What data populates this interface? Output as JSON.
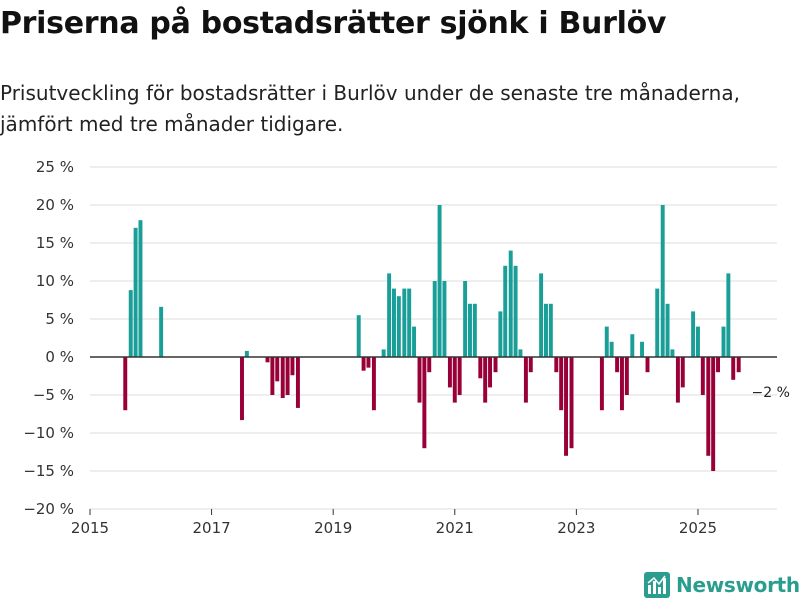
{
  "title": "Priserna på bostadsrätter sjönk i Burlöv",
  "subtitle": "Prisutveckling för bostadsrätter i Burlöv under de senaste tre månaderna, jämfört med tre månader tidigare.",
  "logo": {
    "text": "Newsworthy",
    "icon": "newsworthy-logo-icon"
  },
  "colors": {
    "positive": "#1a9e98",
    "negative": "#990038",
    "grid": "#dddddd",
    "axis": "#333333",
    "text": "#333333"
  },
  "chart_data": {
    "type": "bar",
    "title": "Priserna på bostadsrätter sjönk i Burlöv",
    "xlabel": "",
    "ylabel": "",
    "ylim": [
      -20,
      25
    ],
    "xlim": [
      2015.0,
      2026.3
    ],
    "yticks": [
      25,
      20,
      15,
      10,
      5,
      0,
      -5,
      -10,
      -15,
      -20
    ],
    "ytick_labels": [
      "25 %",
      "20 %",
      "15 %",
      "10 %",
      "5 %",
      "0 %",
      "−5 %",
      "−10 %",
      "−15 %",
      "−20 %"
    ],
    "xticks": [
      2015,
      2017,
      2019,
      2021,
      2023,
      2025
    ],
    "xtick_labels": [
      "2015",
      "2017",
      "2019",
      "2021",
      "2023",
      "2025"
    ],
    "bar_width_years": 0.065,
    "annotation": {
      "x": 2025.75,
      "y": -2,
      "text": "−2 %"
    },
    "series": [
      {
        "name": "Prisutveckling",
        "points": [
          {
            "x": 2015.58,
            "y": -7
          },
          {
            "x": 2015.67,
            "y": 8.8
          },
          {
            "x": 2015.75,
            "y": 17
          },
          {
            "x": 2015.83,
            "y": 18
          },
          {
            "x": 2016.17,
            "y": 6.6
          },
          {
            "x": 2017.5,
            "y": -8.3
          },
          {
            "x": 2017.58,
            "y": 0.8
          },
          {
            "x": 2017.92,
            "y": -0.7
          },
          {
            "x": 2018.0,
            "y": -5
          },
          {
            "x": 2018.08,
            "y": -3.2
          },
          {
            "x": 2018.17,
            "y": -5.4
          },
          {
            "x": 2018.25,
            "y": -5
          },
          {
            "x": 2018.33,
            "y": -2.4
          },
          {
            "x": 2018.42,
            "y": -6.7
          },
          {
            "x": 2019.42,
            "y": 5.5
          },
          {
            "x": 2019.5,
            "y": -1.8
          },
          {
            "x": 2019.58,
            "y": -1.4
          },
          {
            "x": 2019.67,
            "y": -7
          },
          {
            "x": 2019.83,
            "y": 1
          },
          {
            "x": 2019.92,
            "y": 11
          },
          {
            "x": 2020.0,
            "y": 9
          },
          {
            "x": 2020.08,
            "y": 8
          },
          {
            "x": 2020.17,
            "y": 9
          },
          {
            "x": 2020.25,
            "y": 9
          },
          {
            "x": 2020.33,
            "y": 4
          },
          {
            "x": 2020.42,
            "y": -6
          },
          {
            "x": 2020.5,
            "y": -12
          },
          {
            "x": 2020.58,
            "y": -2
          },
          {
            "x": 2020.67,
            "y": 10
          },
          {
            "x": 2020.75,
            "y": 20
          },
          {
            "x": 2020.83,
            "y": 10
          },
          {
            "x": 2020.92,
            "y": -4
          },
          {
            "x": 2021.0,
            "y": -6
          },
          {
            "x": 2021.08,
            "y": -5
          },
          {
            "x": 2021.17,
            "y": 10
          },
          {
            "x": 2021.25,
            "y": 7
          },
          {
            "x": 2021.33,
            "y": 7
          },
          {
            "x": 2021.42,
            "y": -2.8
          },
          {
            "x": 2021.5,
            "y": -6
          },
          {
            "x": 2021.58,
            "y": -4
          },
          {
            "x": 2021.67,
            "y": -2
          },
          {
            "x": 2021.75,
            "y": 6
          },
          {
            "x": 2021.83,
            "y": 12
          },
          {
            "x": 2021.92,
            "y": 14
          },
          {
            "x": 2022.0,
            "y": 12
          },
          {
            "x": 2022.08,
            "y": 1
          },
          {
            "x": 2022.17,
            "y": -6
          },
          {
            "x": 2022.25,
            "y": -2
          },
          {
            "x": 2022.42,
            "y": 11
          },
          {
            "x": 2022.5,
            "y": 7
          },
          {
            "x": 2022.58,
            "y": 7
          },
          {
            "x": 2022.67,
            "y": -2
          },
          {
            "x": 2022.75,
            "y": -7
          },
          {
            "x": 2022.83,
            "y": -13
          },
          {
            "x": 2022.92,
            "y": -12
          },
          {
            "x": 2023.42,
            "y": -7
          },
          {
            "x": 2023.5,
            "y": 4
          },
          {
            "x": 2023.58,
            "y": 2
          },
          {
            "x": 2023.67,
            "y": -2
          },
          {
            "x": 2023.75,
            "y": -7
          },
          {
            "x": 2023.83,
            "y": -5
          },
          {
            "x": 2023.92,
            "y": 3
          },
          {
            "x": 2024.08,
            "y": 2
          },
          {
            "x": 2024.17,
            "y": -2
          },
          {
            "x": 2024.33,
            "y": 9
          },
          {
            "x": 2024.42,
            "y": 20
          },
          {
            "x": 2024.5,
            "y": 7
          },
          {
            "x": 2024.58,
            "y": 1
          },
          {
            "x": 2024.67,
            "y": -6
          },
          {
            "x": 2024.75,
            "y": -4
          },
          {
            "x": 2024.92,
            "y": 6
          },
          {
            "x": 2025.0,
            "y": 4
          },
          {
            "x": 2025.08,
            "y": -5
          },
          {
            "x": 2025.17,
            "y": -13
          },
          {
            "x": 2025.25,
            "y": -15
          },
          {
            "x": 2025.33,
            "y": -2
          },
          {
            "x": 2025.42,
            "y": 4
          },
          {
            "x": 2025.5,
            "y": 11
          },
          {
            "x": 2025.58,
            "y": -3
          },
          {
            "x": 2025.67,
            "y": -2
          }
        ]
      }
    ]
  }
}
